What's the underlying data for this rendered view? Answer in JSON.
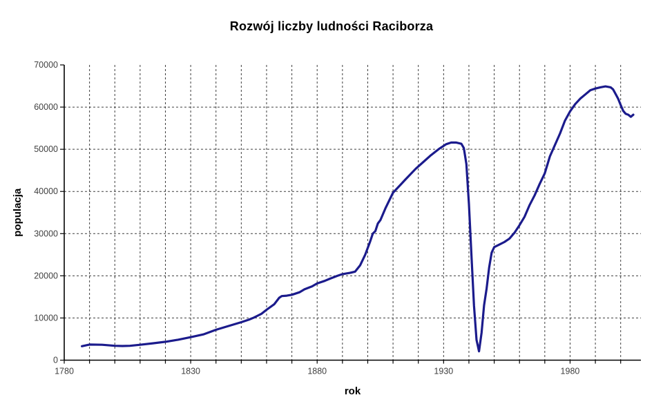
{
  "title": "Rozwój liczby ludności Raciborza",
  "chart_data": {
    "type": "line",
    "title": "Rozwój liczby ludności Raciborza",
    "xlabel": "rok",
    "ylabel": "populacja",
    "xlim": [
      1780,
      2008
    ],
    "ylim": [
      0,
      70000
    ],
    "x_tick_labels": [
      "1780",
      "1830",
      "1880",
      "1930",
      "1980"
    ],
    "x_tick_values": [
      1780,
      1830,
      1880,
      1930,
      1980
    ],
    "x_minor_tick_start": 1780,
    "x_minor_tick_end": 2000,
    "x_minor_tick_step": 10,
    "y_tick_labels": [
      "0",
      "10000",
      "20000",
      "30000",
      "40000",
      "50000",
      "60000",
      "70000"
    ],
    "y_tick_values": [
      0,
      10000,
      20000,
      30000,
      40000,
      50000,
      60000,
      70000
    ],
    "grid": {
      "vertical_every_years": 10,
      "horizontal_every": 10000,
      "style": "dashed"
    },
    "legend": "none",
    "colors": {
      "line": "#1b1b8c",
      "grid": "#3c3c3c",
      "axis": "#000000",
      "tick_label": "#404040",
      "label": "#000000",
      "background": "#ffffff"
    },
    "series": [
      {
        "name": "populacja Raciborza",
        "points": [
          [
            1787,
            3300
          ],
          [
            1790,
            3700
          ],
          [
            1795,
            3650
          ],
          [
            1800,
            3400
          ],
          [
            1803,
            3350
          ],
          [
            1806,
            3400
          ],
          [
            1810,
            3650
          ],
          [
            1815,
            4000
          ],
          [
            1820,
            4350
          ],
          [
            1825,
            4850
          ],
          [
            1830,
            5450
          ],
          [
            1835,
            6100
          ],
          [
            1840,
            7200
          ],
          [
            1845,
            8100
          ],
          [
            1850,
            9000
          ],
          [
            1853,
            9600
          ],
          [
            1855,
            10100
          ],
          [
            1856,
            10400
          ],
          [
            1858,
            11000
          ],
          [
            1860,
            11950
          ],
          [
            1863,
            13250
          ],
          [
            1865,
            14800
          ],
          [
            1866,
            15200
          ],
          [
            1868,
            15300
          ],
          [
            1870,
            15500
          ],
          [
            1873,
            16100
          ],
          [
            1875,
            16800
          ],
          [
            1878,
            17500
          ],
          [
            1880,
            18200
          ],
          [
            1883,
            18800
          ],
          [
            1885,
            19300
          ],
          [
            1888,
            20000
          ],
          [
            1890,
            20400
          ],
          [
            1893,
            20700
          ],
          [
            1895,
            21000
          ],
          [
            1897,
            22500
          ],
          [
            1899,
            25000
          ],
          [
            1901,
            28200
          ],
          [
            1902,
            30000
          ],
          [
            1903,
            30600
          ],
          [
            1904,
            32400
          ],
          [
            1905,
            33200
          ],
          [
            1907,
            36000
          ],
          [
            1910,
            39700
          ],
          [
            1913,
            41600
          ],
          [
            1915,
            42900
          ],
          [
            1919,
            45400
          ],
          [
            1922,
            47000
          ],
          [
            1925,
            48600
          ],
          [
            1928,
            50000
          ],
          [
            1931,
            51200
          ],
          [
            1933,
            51600
          ],
          [
            1935,
            51600
          ],
          [
            1937,
            51300
          ],
          [
            1938,
            50300
          ],
          [
            1939,
            46500
          ],
          [
            1940,
            37000
          ],
          [
            1941,
            25000
          ],
          [
            1942,
            13000
          ],
          [
            1943,
            4800
          ],
          [
            1944,
            2100
          ],
          [
            1945,
            6500
          ],
          [
            1946,
            13000
          ],
          [
            1947,
            17000
          ],
          [
            1948,
            22000
          ],
          [
            1949,
            25500
          ],
          [
            1950,
            26800
          ],
          [
            1952,
            27400
          ],
          [
            1954,
            28000
          ],
          [
            1956,
            28800
          ],
          [
            1958,
            30200
          ],
          [
            1960,
            32000
          ],
          [
            1962,
            34000
          ],
          [
            1964,
            36800
          ],
          [
            1966,
            39100
          ],
          [
            1968,
            41800
          ],
          [
            1970,
            44300
          ],
          [
            1972,
            48300
          ],
          [
            1974,
            51000
          ],
          [
            1976,
            53700
          ],
          [
            1978,
            56800
          ],
          [
            1980,
            59000
          ],
          [
            1982,
            60700
          ],
          [
            1984,
            62000
          ],
          [
            1986,
            63000
          ],
          [
            1988,
            64000
          ],
          [
            1990,
            64400
          ],
          [
            1992,
            64700
          ],
          [
            1994,
            64900
          ],
          [
            1996,
            64700
          ],
          [
            1997,
            64200
          ],
          [
            1998,
            63100
          ],
          [
            1999,
            62000
          ],
          [
            2000,
            60500
          ],
          [
            2001,
            59100
          ],
          [
            2002,
            58400
          ],
          [
            2003,
            58200
          ],
          [
            2004,
            57700
          ],
          [
            2005,
            58200
          ]
        ]
      }
    ]
  }
}
